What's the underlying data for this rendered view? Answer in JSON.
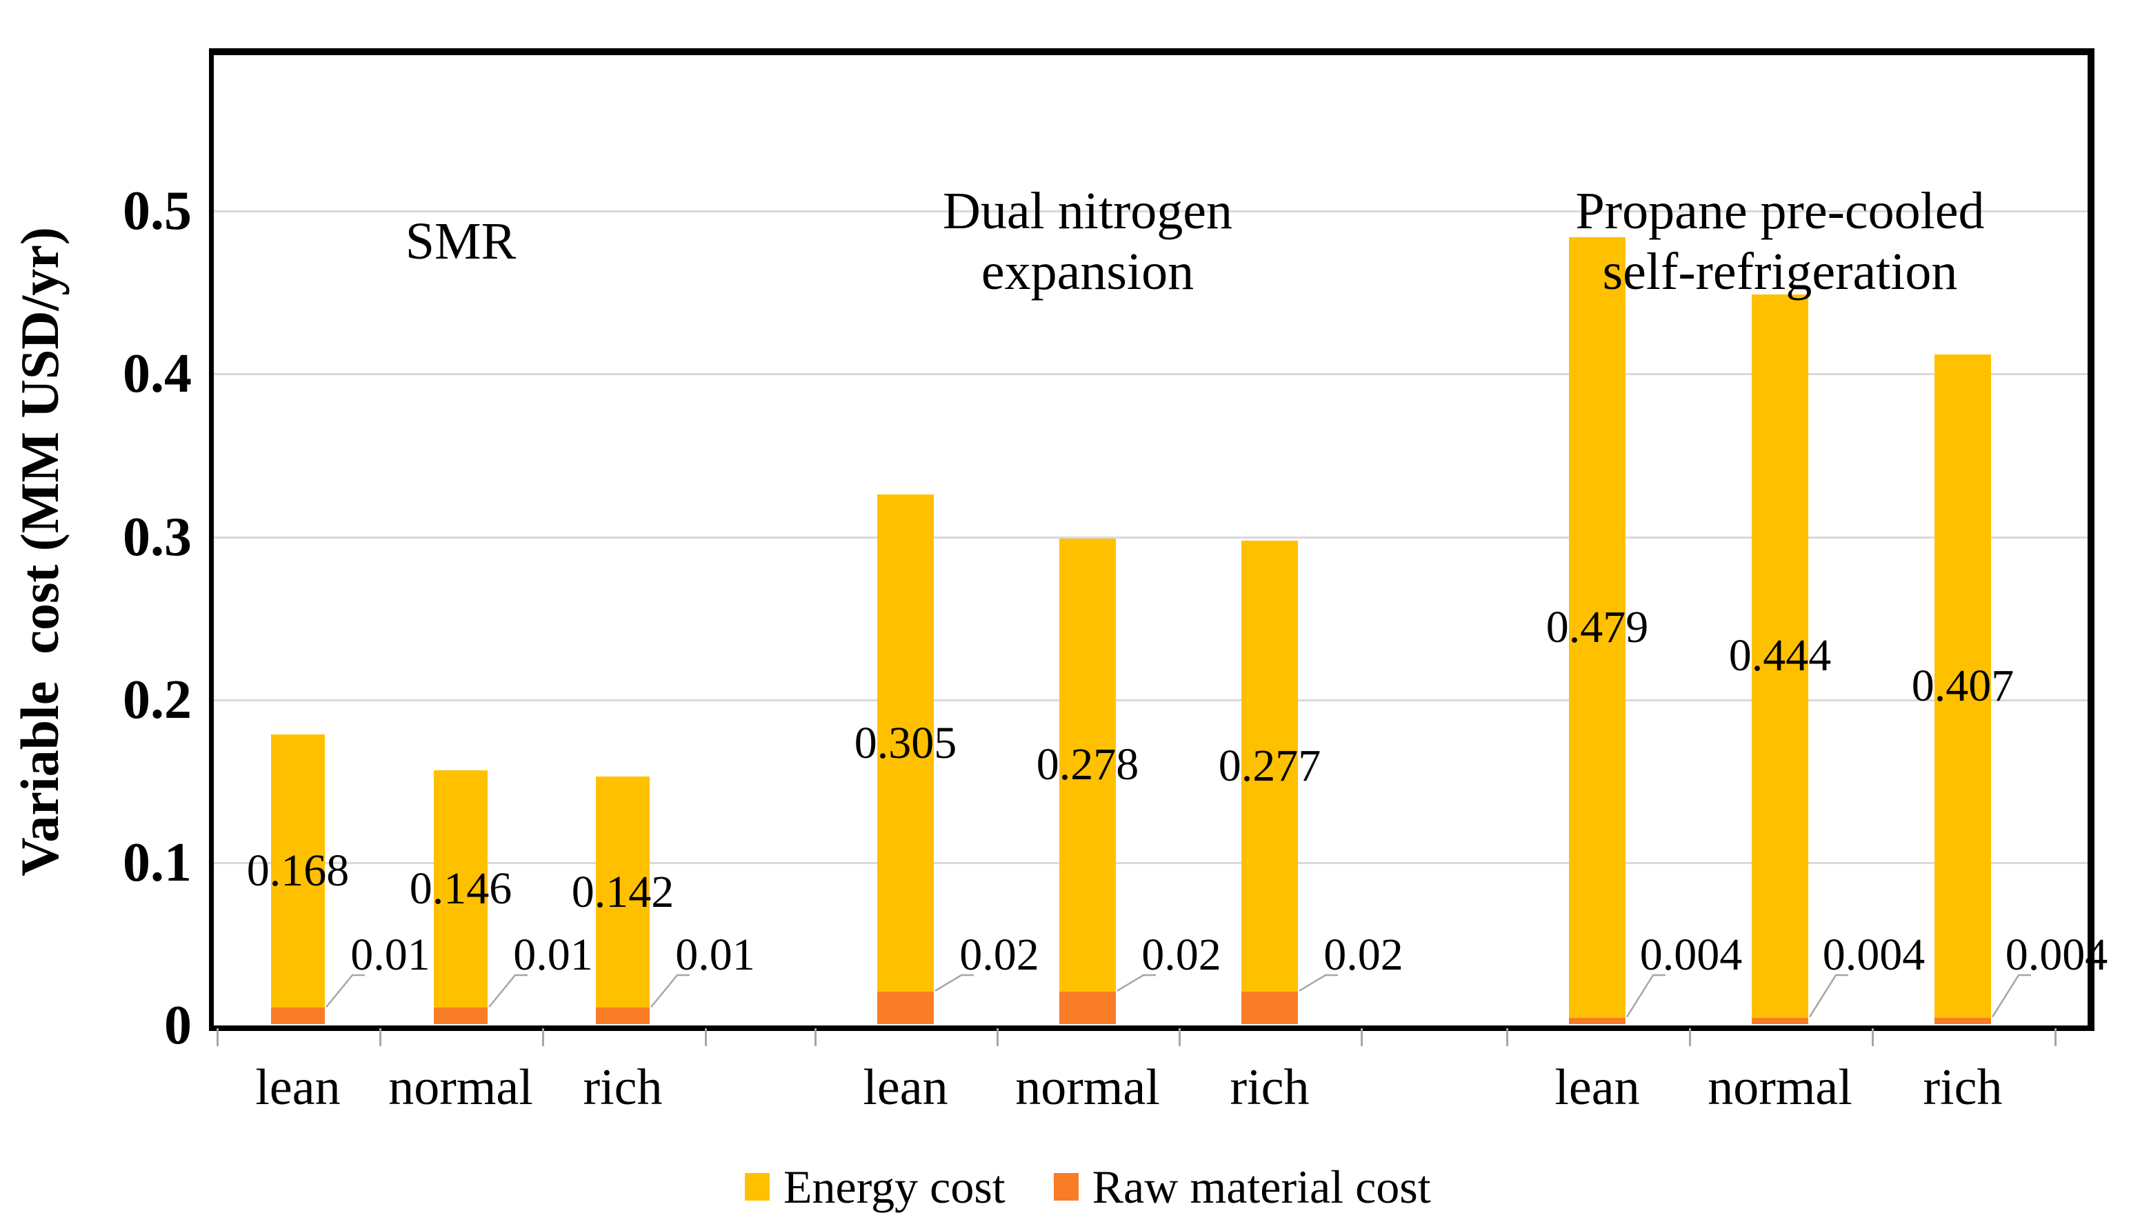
{
  "chart_data": {
    "type": "bar",
    "stacked": true,
    "title": "",
    "ylabel": "Variable  cost (MM USD/yr)",
    "ylim": [
      0,
      0.6
    ],
    "grid": "horizontal",
    "legend_position": "bottom",
    "y_axis": {
      "tick_labels": [
        "0",
        "0.1",
        "0.2",
        "0.3",
        "0.4",
        "0.5"
      ],
      "tick_values": [
        0,
        0.1,
        0.2,
        0.3,
        0.4,
        0.5
      ]
    },
    "series_names": [
      "Energy cost",
      "Raw material cost"
    ],
    "legend": [
      {
        "name": "Energy cost",
        "color": "#FFC000"
      },
      {
        "name": "Raw material cost",
        "color": "#F97D26"
      }
    ],
    "groups": [
      {
        "title": "SMR",
        "title_lines": [
          "SMR"
        ],
        "categories": [
          "lean",
          "normal",
          "rich"
        ],
        "energy_cost": {
          "values": [
            0.168,
            0.146,
            0.142
          ],
          "labels": [
            "0.168",
            "0.146",
            "0.142"
          ]
        },
        "raw_material_cost": {
          "values": [
            0.01,
            0.01,
            0.01
          ],
          "labels": [
            "0.01",
            "0.01",
            "0.01"
          ]
        }
      },
      {
        "title": "Dual nitrogen expansion",
        "title_lines": [
          "Dual nitrogen",
          "expansion"
        ],
        "categories": [
          "lean",
          "normal",
          "rich"
        ],
        "energy_cost": {
          "values": [
            0.305,
            0.278,
            0.277
          ],
          "labels": [
            "0.305",
            "0.278",
            "0.277"
          ]
        },
        "raw_material_cost": {
          "values": [
            0.02,
            0.02,
            0.02
          ],
          "labels": [
            "0.02",
            "0.02",
            "0.02"
          ]
        }
      },
      {
        "title": "Propane pre-cooled self-refrigeration",
        "title_lines": [
          "Propane pre-cooled",
          "self-refrigeration"
        ],
        "categories": [
          "lean",
          "normal",
          "rich"
        ],
        "energy_cost": {
          "values": [
            0.479,
            0.444,
            0.407
          ],
          "labels": [
            "0.479",
            "0.444",
            "0.407"
          ]
        },
        "raw_material_cost": {
          "values": [
            0.004,
            0.004,
            0.004
          ],
          "labels": [
            "0.004",
            "0.004",
            "0.004"
          ]
        }
      }
    ],
    "colors": {
      "energy": "#FFC000",
      "raw_material": "#F97D26",
      "gridline": "#D9D9D9",
      "frame": "#000000",
      "leader_line": "#A6A6A6",
      "tick": "#A6A6A6"
    }
  }
}
